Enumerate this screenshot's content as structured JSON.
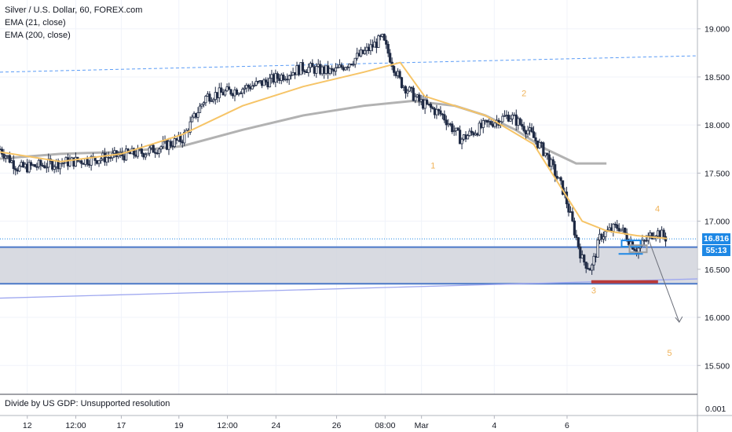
{
  "legend": {
    "symbol": "Silver / U.S. Dollar, 60, FOREX.com",
    "ema21": "EMA (21, close)",
    "ema200": "EMA (200, close)"
  },
  "footnote": "Divide by US GDP: Unsupported resolution",
  "badges": {
    "last_price": "16.816",
    "countdown": "55:13"
  },
  "colors": {
    "ema21": "#f6c467",
    "ema200": "#b2b2b2",
    "zone": "#d1d4dc",
    "zone_line": "#4b79c8",
    "support": "#b93a3a",
    "wave_label": "#f0b35a",
    "price_line": "#1e88e5"
  },
  "chart_data": {
    "type": "candlestick",
    "ylim": [
      15.2,
      19.3
    ],
    "y_ticks": [
      "19.000",
      "18.500",
      "18.000",
      "17.500",
      "17.000",
      "16.500",
      "16.000",
      "15.500"
    ],
    "x_ticks": [
      "12",
      "12:00",
      "17",
      "19",
      "12:00",
      "24",
      "26",
      "08:00",
      "Mar",
      "4",
      "6"
    ],
    "lower_pane_tick": "0.001",
    "close_path": [
      [
        0,
        17.75
      ],
      [
        0.3,
        17.55
      ],
      [
        0.9,
        17.6
      ],
      [
        1.6,
        17.65
      ],
      [
        2.4,
        17.72
      ],
      [
        3.0,
        17.85
      ],
      [
        3.4,
        18.3
      ],
      [
        3.8,
        18.35
      ],
      [
        4.4,
        18.45
      ],
      [
        5.0,
        18.6
      ],
      [
        5.5,
        18.55
      ],
      [
        6.0,
        18.75
      ],
      [
        6.3,
        18.9
      ],
      [
        6.6,
        18.45
      ],
      [
        6.9,
        18.25
      ],
      [
        7.3,
        18.1
      ],
      [
        7.6,
        17.85
      ],
      [
        8.0,
        18.0
      ],
      [
        8.4,
        18.1
      ],
      [
        8.7,
        17.95
      ],
      [
        9.0,
        17.7
      ],
      [
        9.3,
        17.3
      ],
      [
        9.6,
        16.6
      ],
      [
        9.75,
        16.5
      ],
      [
        9.9,
        16.85
      ],
      [
        10.2,
        16.95
      ],
      [
        10.5,
        16.7
      ],
      [
        10.8,
        16.9
      ],
      [
        11.0,
        16.82
      ]
    ],
    "ema21_path": [
      [
        0,
        17.72
      ],
      [
        1.0,
        17.62
      ],
      [
        2.0,
        17.7
      ],
      [
        3.0,
        17.9
      ],
      [
        4.0,
        18.2
      ],
      [
        5.0,
        18.4
      ],
      [
        6.0,
        18.55
      ],
      [
        6.6,
        18.65
      ],
      [
        7.0,
        18.3
      ],
      [
        7.5,
        18.2
      ],
      [
        8.0,
        18.1
      ],
      [
        8.4,
        17.95
      ],
      [
        8.8,
        17.8
      ],
      [
        9.2,
        17.4
      ],
      [
        9.6,
        17.0
      ],
      [
        10.0,
        16.9
      ],
      [
        10.5,
        16.85
      ],
      [
        11.0,
        16.82
      ]
    ],
    "ema200_path": [
      [
        0,
        17.65
      ],
      [
        1.0,
        17.7
      ],
      [
        2.0,
        17.72
      ],
      [
        3.0,
        17.78
      ],
      [
        4.0,
        17.95
      ],
      [
        5.0,
        18.1
      ],
      [
        6.0,
        18.2
      ],
      [
        6.8,
        18.25
      ],
      [
        7.5,
        18.2
      ],
      [
        8.0,
        18.1
      ],
      [
        8.5,
        17.95
      ],
      [
        9.0,
        17.75
      ],
      [
        9.5,
        17.6
      ],
      [
        10.0,
        17.6
      ]
    ],
    "zone": [
      16.35,
      16.73
    ],
    "support_line": 16.37,
    "resistance_trend": [
      [
        0,
        18.55
      ],
      [
        11.5,
        18.72
      ]
    ],
    "support_trend": [
      [
        0,
        16.2
      ],
      [
        11.5,
        16.4
      ]
    ],
    "last_price": 16.816,
    "projection": [
      [
        10.7,
        16.8
      ],
      [
        11.2,
        15.95
      ]
    ],
    "wave_labels": [
      {
        "label": "1",
        "x": 7.1,
        "y": 17.55
      },
      {
        "label": "2",
        "x": 8.6,
        "y": 18.3
      },
      {
        "label": "3",
        "x": 9.75,
        "y": 16.25
      },
      {
        "label": "4",
        "x": 10.8,
        "y": 17.1
      },
      {
        "label": "5",
        "x": 11.0,
        "y": 15.6
      }
    ]
  }
}
